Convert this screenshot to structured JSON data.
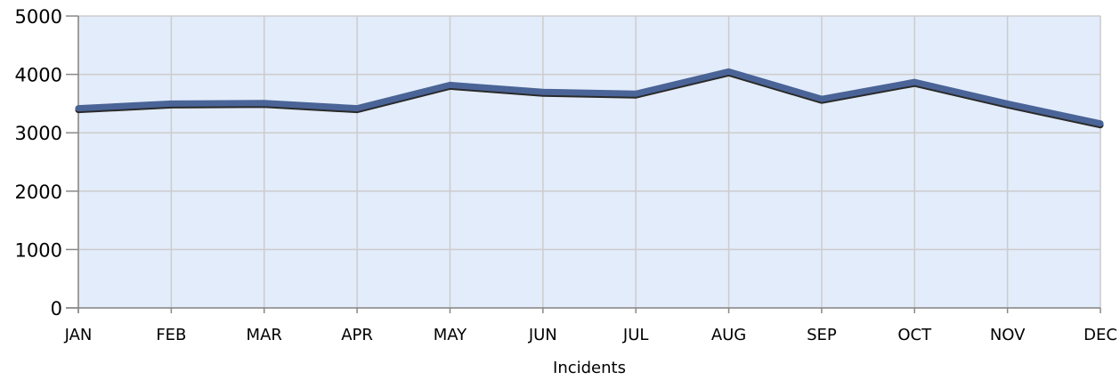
{
  "chart_data": {
    "type": "line",
    "title": "",
    "xlabel": "Incidents",
    "ylabel": "",
    "categories": [
      "JAN",
      "FEB",
      "MAR",
      "APR",
      "MAY",
      "JUN",
      "JUL",
      "AUG",
      "SEP",
      "OCT",
      "NOV",
      "DEC"
    ],
    "series": [
      {
        "values": [
          3420,
          3500,
          3510,
          3420,
          3820,
          3700,
          3670,
          4050,
          3580,
          3870,
          3500,
          3160
        ]
      }
    ],
    "ylim": [
      0,
      5000
    ],
    "yticks": [
      0,
      1000,
      2000,
      3000,
      4000,
      5000
    ],
    "grid": true,
    "legend": "none",
    "colors": {
      "plot_background": "#e3ecfa",
      "gridline": "#cccccc",
      "line": "#4a6497",
      "line_shadow": "#2a2a2a",
      "axis": "#888888"
    }
  }
}
